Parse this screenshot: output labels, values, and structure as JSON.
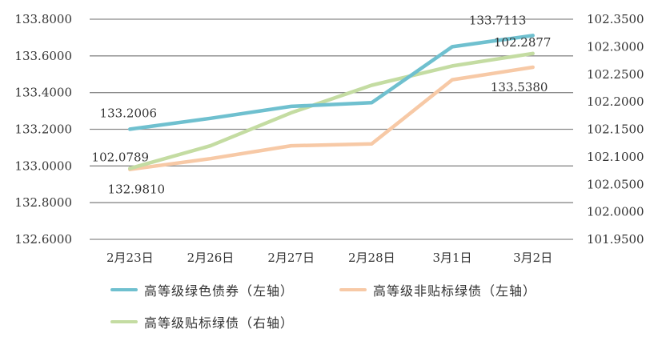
{
  "chart_data": {
    "type": "line",
    "title": "",
    "categories": [
      "2月23日",
      "2月26日",
      "2月27日",
      "2月28日",
      "3月1日",
      "3月2日"
    ],
    "y_left": {
      "ylim": [
        132.6,
        133.8
      ],
      "ticks": [
        "132.6000",
        "132.8000",
        "133.0000",
        "133.2000",
        "133.4000",
        "133.6000",
        "133.8000"
      ]
    },
    "y_right": {
      "ylim": [
        101.95,
        102.35
      ],
      "ticks": [
        "101.9500",
        "102.0000",
        "102.0500",
        "102.1000",
        "102.1500",
        "102.2000",
        "102.2500",
        "102.3000",
        "102.3500"
      ]
    },
    "grid": true,
    "legend_position": "bottom",
    "series": [
      {
        "name": "高等级绿色债券（左轴）",
        "axis": "left",
        "color": "#6fc0cf",
        "values": [
          133.2006,
          133.26,
          133.325,
          133.345,
          133.65,
          133.7113
        ],
        "labels": [
          {
            "index": 0,
            "text": "133.2006"
          },
          {
            "index": 5,
            "text": "133.7113"
          }
        ]
      },
      {
        "name": "高等级非贴标绿债（左轴）",
        "axis": "left",
        "color": "#f7c9a6",
        "values": [
          132.981,
          133.04,
          133.11,
          133.12,
          133.47,
          133.538
        ],
        "labels": [
          {
            "index": 0,
            "text": "132.9810"
          },
          {
            "index": 5,
            "text": "133.5380"
          }
        ]
      },
      {
        "name": "高等级贴标绿债（右轴）",
        "axis": "right",
        "color": "#c4dca2",
        "values": [
          102.0789,
          102.12,
          102.18,
          102.23,
          102.265,
          102.2877
        ],
        "labels": [
          {
            "index": 0,
            "text": "102.0789"
          },
          {
            "index": 5,
            "text": "102.2877"
          }
        ]
      }
    ]
  }
}
